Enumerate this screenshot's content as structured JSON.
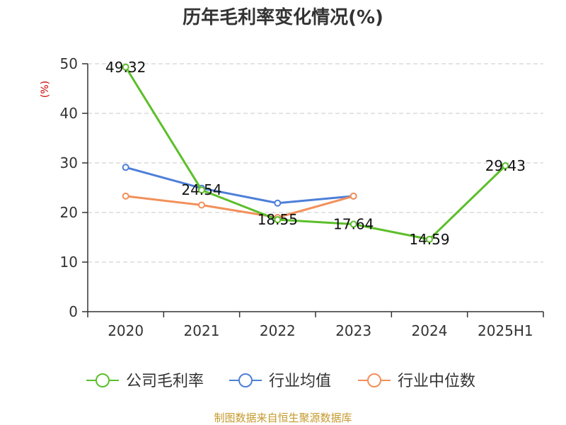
{
  "chart_data": {
    "type": "line",
    "title": "历年毛利率变化情况(%)",
    "ylabel": "(%)",
    "xlabel": "",
    "categories": [
      "2020",
      "2021",
      "2022",
      "2023",
      "2024",
      "2025H1"
    ],
    "ylim": [
      0,
      50
    ],
    "yticks": [
      "0",
      "10",
      "20",
      "30",
      "40",
      "50"
    ],
    "grid": "horizontal dashed",
    "legend_position": "bottom",
    "series": [
      {
        "name": "公司毛利率",
        "color": "#5cbf2a",
        "values": [
          49.32,
          24.54,
          18.55,
          17.64,
          14.59,
          29.43
        ],
        "labels": [
          "49.32",
          "24.54",
          "18.55",
          "17.64",
          "14.59",
          "29.43"
        ]
      },
      {
        "name": "行业均值",
        "color": "#4d7fd9",
        "values": [
          29.1,
          24.9,
          21.9,
          23.3,
          null,
          null
        ]
      },
      {
        "name": "行业中位数",
        "color": "#f2905a",
        "values": [
          23.3,
          21.5,
          19.0,
          23.3,
          null,
          null
        ]
      }
    ]
  },
  "source_text": "制图数据来自恒生聚源数据库"
}
